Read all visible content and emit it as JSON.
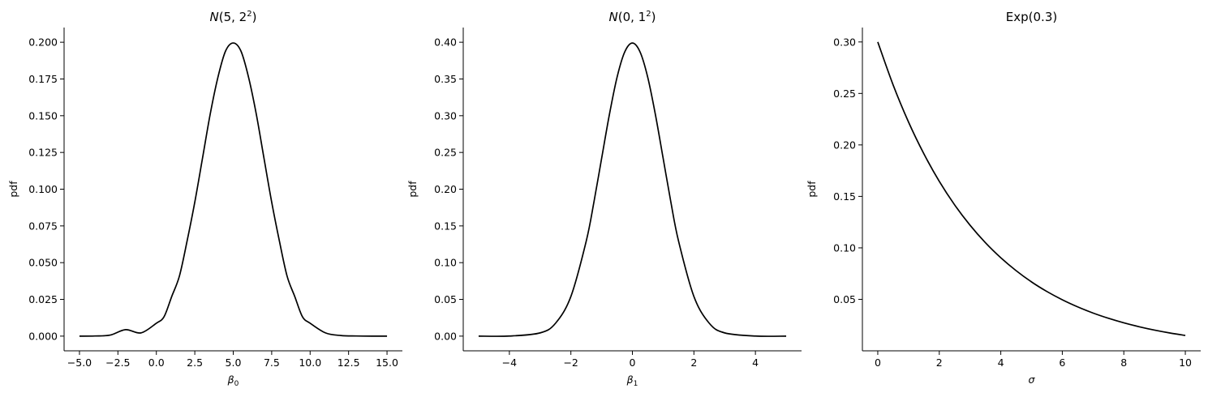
{
  "chart_data": [
    {
      "type": "line",
      "title": {
        "prefix": "N",
        "args": "(5, 2",
        "sup": "2",
        "suffix": ")"
      },
      "xlabel": {
        "base": "β",
        "sub": "0"
      },
      "ylabel": "pdf",
      "xlim": [
        -6.0,
        16.0
      ],
      "ylim": [
        -0.01,
        0.21
      ],
      "xticks": [
        -5.0,
        -2.5,
        0.0,
        2.5,
        5.0,
        7.5,
        10.0,
        12.5,
        15.0
      ],
      "xtick_labels": [
        "−5.0",
        "−2.5",
        "0.0",
        "2.5",
        "5.0",
        "7.5",
        "10.0",
        "12.5",
        "15.0"
      ],
      "yticks": [
        0.0,
        0.025,
        0.05,
        0.075,
        0.1,
        0.125,
        0.15,
        0.175,
        0.2
      ],
      "ytick_labels": [
        "0.000",
        "0.025",
        "0.050",
        "0.075",
        "0.100",
        "0.125",
        "0.150",
        "0.175",
        "0.200"
      ],
      "grid": false,
      "color": "#000000",
      "series": [
        {
          "x": [
            -5.0,
            -4.0,
            -3.0,
            -2.0,
            -1.0,
            0.0,
            0.5,
            1.0,
            1.5,
            2.0,
            2.5,
            3.0,
            3.5,
            4.0,
            4.5,
            5.0,
            5.5,
            6.0,
            6.5,
            7.0,
            7.5,
            8.0,
            8.5,
            9.0,
            9.5,
            10.0,
            11.0,
            12.0,
            13.0,
            14.0,
            15.0
          ],
          "y": [
            0.0,
            0.0001,
            0.0007,
            0.0044,
            0.0022,
            0.0088,
            0.0132,
            0.027,
            0.0409,
            0.0648,
            0.0912,
            0.121,
            0.151,
            0.176,
            0.194,
            0.1995,
            0.194,
            0.176,
            0.151,
            0.121,
            0.0912,
            0.0648,
            0.0409,
            0.027,
            0.0132,
            0.0088,
            0.0022,
            0.0004,
            0.0001,
            0.0,
            0.0
          ]
        }
      ]
    },
    {
      "type": "line",
      "title": {
        "prefix": "N",
        "args": "(0, 1",
        "sup": "2",
        "suffix": ")"
      },
      "xlabel": {
        "base": "β",
        "sub": "1"
      },
      "ylabel": "pdf",
      "xlim": [
        -5.5,
        5.5
      ],
      "ylim": [
        -0.02,
        0.42
      ],
      "xticks": [
        -4,
        -2,
        0,
        2,
        4
      ],
      "xtick_labels": [
        "−4",
        "−2",
        "0",
        "2",
        "4"
      ],
      "yticks": [
        0.0,
        0.05,
        0.1,
        0.15,
        0.2,
        0.25,
        0.3,
        0.35,
        0.4
      ],
      "ytick_labels": [
        "0.00",
        "0.05",
        "0.10",
        "0.15",
        "0.20",
        "0.25",
        "0.30",
        "0.35",
        "0.40"
      ],
      "grid": false,
      "color": "#000000",
      "series": [
        {
          "x": [
            -5.0,
            -4.0,
            -3.0,
            -2.5,
            -2.0,
            -1.5,
            -1.25,
            -1.0,
            -0.75,
            -0.5,
            -0.25,
            0.0,
            0.25,
            0.5,
            0.75,
            1.0,
            1.25,
            1.5,
            2.0,
            2.5,
            3.0,
            4.0,
            5.0
          ],
          "y": [
            0.0,
            0.0001,
            0.0044,
            0.0175,
            0.054,
            0.1295,
            0.1826,
            0.242,
            0.3011,
            0.3521,
            0.3867,
            0.3989,
            0.3867,
            0.3521,
            0.3011,
            0.242,
            0.1826,
            0.1295,
            0.054,
            0.0175,
            0.0044,
            0.0001,
            0.0
          ]
        }
      ]
    },
    {
      "type": "line",
      "title": {
        "prefix": "",
        "args": "Exp(0.3)",
        "sup": "",
        "suffix": ""
      },
      "xlabel": {
        "base": "σ",
        "sub": ""
      },
      "ylabel": "pdf",
      "xlim": [
        -0.5,
        10.5
      ],
      "ylim": [
        0.0,
        0.314
      ],
      "xticks": [
        0,
        2,
        4,
        6,
        8,
        10
      ],
      "xtick_labels": [
        "0",
        "2",
        "4",
        "6",
        "8",
        "10"
      ],
      "yticks": [
        0.05,
        0.1,
        0.15,
        0.2,
        0.25,
        0.3
      ],
      "ytick_labels": [
        "0.05",
        "0.10",
        "0.15",
        "0.20",
        "0.25",
        "0.30"
      ],
      "grid": false,
      "color": "#000000",
      "series": [
        {
          "x": [
            0,
            0.5,
            1,
            1.5,
            2,
            2.5,
            3,
            3.5,
            4,
            4.5,
            5,
            5.5,
            6,
            6.5,
            7,
            7.5,
            8,
            8.5,
            9,
            9.5,
            10
          ],
          "y": [
            0.3,
            0.2582,
            0.2222,
            0.1913,
            0.1646,
            0.1417,
            0.122,
            0.105,
            0.0904,
            0.0778,
            0.0669,
            0.0576,
            0.0496,
            0.0427,
            0.0367,
            0.0316,
            0.0272,
            0.0234,
            0.0201,
            0.0173,
            0.0149
          ]
        }
      ]
    }
  ]
}
